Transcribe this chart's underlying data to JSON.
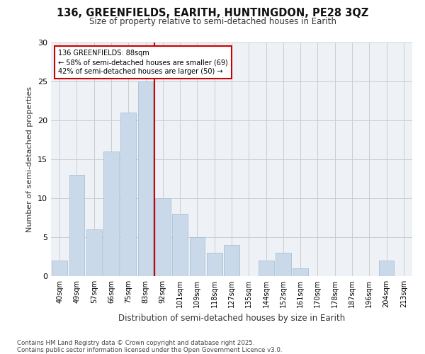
{
  "title1": "136, GREENFIELDS, EARITH, HUNTINGDON, PE28 3QZ",
  "title2": "Size of property relative to semi-detached houses in Earith",
  "xlabel": "Distribution of semi-detached houses by size in Earith",
  "ylabel": "Number of semi-detached properties",
  "categories": [
    "40sqm",
    "49sqm",
    "57sqm",
    "66sqm",
    "75sqm",
    "83sqm",
    "92sqm",
    "101sqm",
    "109sqm",
    "118sqm",
    "127sqm",
    "135sqm",
    "144sqm",
    "152sqm",
    "161sqm",
    "170sqm",
    "178sqm",
    "187sqm",
    "196sqm",
    "204sqm",
    "213sqm"
  ],
  "values": [
    2,
    13,
    6,
    16,
    21,
    25,
    10,
    8,
    5,
    3,
    4,
    0,
    2,
    3,
    1,
    0,
    0,
    0,
    0,
    2,
    0
  ],
  "bar_color": "#c9d9ea",
  "bar_edge_color": "#a8c0d4",
  "vline_x": 5.5,
  "vline_color": "#cc0000",
  "annotation_title": "136 GREENFIELDS: 88sqm",
  "annotation_line1": "← 58% of semi-detached houses are smaller (69)",
  "annotation_line2": "42% of semi-detached houses are larger (50) →",
  "annotation_box_color": "#ffffff",
  "annotation_box_edge": "#cc0000",
  "ylim": [
    0,
    30
  ],
  "yticks": [
    0,
    5,
    10,
    15,
    20,
    25,
    30
  ],
  "bg_color": "#ffffff",
  "plot_bg_color": "#eef2f7",
  "footer1": "Contains HM Land Registry data © Crown copyright and database right 2025.",
  "footer2": "Contains public sector information licensed under the Open Government Licence v3.0."
}
